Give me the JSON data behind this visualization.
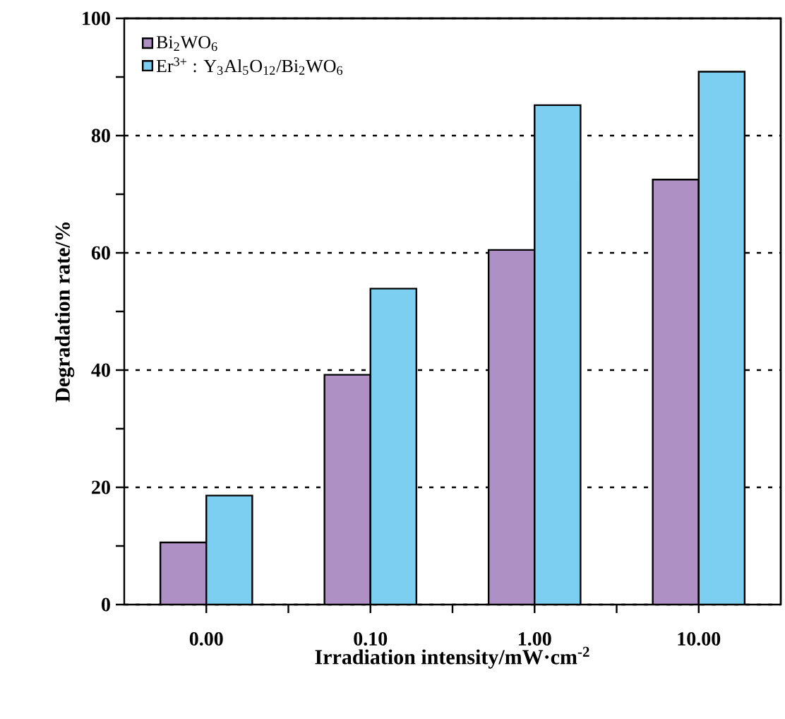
{
  "chart_data": {
    "type": "bar",
    "xlabel": "Irradiation intensity/mW·cm$^{-2}$",
    "ylabel": "Degradation rate/%",
    "categories": [
      "0.00",
      "0.10",
      "1.00",
      "10.00"
    ],
    "series": [
      {
        "name": "Bi$_{2}$WO$_{6}$",
        "color": "#ae90c4",
        "values": [
          10.6,
          39.2,
          60.5,
          72.5
        ]
      },
      {
        "name": "Er$^{3+}$ : Y$_{3}$Al$_{5}$O$_{12}$/Bi$_{2}$WO$_{6}$",
        "color": "#7ccff0",
        "values": [
          18.6,
          53.9,
          85.2,
          90.9
        ]
      }
    ],
    "ylim": [
      0,
      100
    ],
    "yticks": [
      0,
      20,
      40,
      60,
      80,
      100
    ],
    "grid": "y",
    "legend": "top left"
  }
}
